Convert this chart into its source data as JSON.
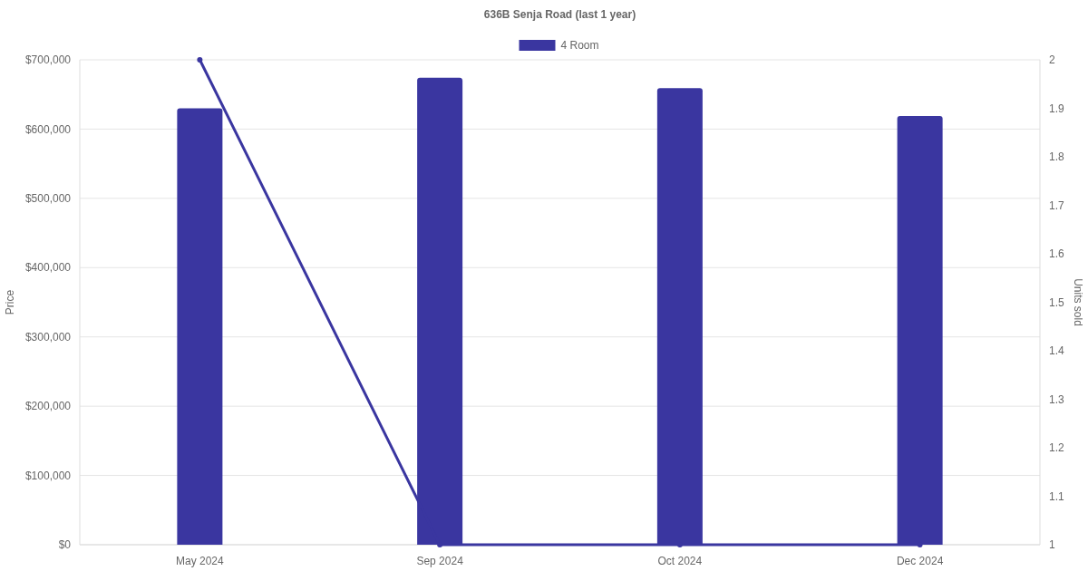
{
  "chart_data": {
    "type": "bar",
    "title": "636B Senja Road (last 1 year)",
    "ylabel": "Price",
    "y2label": "Units sold",
    "categories": [
      "May 2024",
      "Sep 2024",
      "Oct 2024",
      "Dec 2024"
    ],
    "series": [
      {
        "name": "4 Room",
        "color": "#3a36a0",
        "values": [
          630000,
          674000,
          659000,
          619000
        ]
      },
      {
        "type": "line",
        "axis": "y2",
        "color": "#3a36a0",
        "values": [
          2,
          1,
          1,
          1
        ],
        "marker": "circle"
      }
    ],
    "ylim": [
      0,
      700000
    ],
    "yticks": [
      {
        "value": 0,
        "label": "$0"
      },
      {
        "value": 100000,
        "label": "$100,000"
      },
      {
        "value": 200000,
        "label": "$200,000"
      },
      {
        "value": 300000,
        "label": "$300,000"
      },
      {
        "value": 400000,
        "label": "$400,000"
      },
      {
        "value": 500000,
        "label": "$500,000"
      },
      {
        "value": 600000,
        "label": "$600,000"
      },
      {
        "value": 700000,
        "label": "$700,000"
      }
    ],
    "y2lim": [
      1,
      2
    ],
    "y2ticks": [
      1,
      1.1,
      1.2,
      1.3,
      1.4,
      1.5,
      1.6,
      1.7,
      1.8,
      1.9,
      2
    ],
    "grid": "y",
    "legend": "top"
  }
}
